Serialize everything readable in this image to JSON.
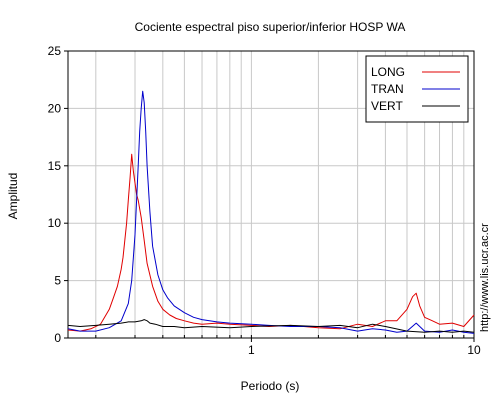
{
  "chart_data": {
    "type": "line",
    "title": "Cociente espectral piso superior/inferior  HOSP WA",
    "xlabel": "Periodo (s)",
    "ylabel": "Amplitud",
    "watermark": "http://www.lis.ucr.ac.cr",
    "x_scale": "log",
    "xlim": [
      0.15,
      10
    ],
    "ylim": [
      0,
      25
    ],
    "x_ticks": [
      {
        "value": 1,
        "label": "1"
      },
      {
        "value": 10,
        "label": "10"
      }
    ],
    "y_ticks": [
      0,
      5,
      10,
      15,
      20,
      25
    ],
    "grid": true,
    "legend_position": "top-right",
    "series": [
      {
        "name": "LONG",
        "color": "#e00000",
        "x": [
          0.15,
          0.17,
          0.19,
          0.21,
          0.23,
          0.24,
          0.25,
          0.26,
          0.265,
          0.27,
          0.275,
          0.28,
          0.285,
          0.29,
          0.295,
          0.3,
          0.305,
          0.31,
          0.32,
          0.33,
          0.34,
          0.36,
          0.38,
          0.4,
          0.43,
          0.46,
          0.5,
          0.55,
          0.6,
          0.7,
          0.8,
          1.0,
          1.2,
          1.5,
          2.0,
          2.5,
          3.0,
          3.5,
          4.0,
          4.5,
          5.0,
          5.3,
          5.5,
          5.7,
          6.0,
          6.5,
          7.0,
          8.0,
          9.0,
          10.0
        ],
        "y": [
          0.7,
          0.6,
          0.8,
          1.2,
          2.5,
          3.5,
          4.5,
          6.0,
          7.0,
          8.5,
          10.0,
          12.0,
          14.0,
          16.0,
          14.5,
          13.5,
          12.5,
          12.0,
          10.5,
          8.5,
          6.5,
          4.5,
          3.2,
          2.5,
          2.0,
          1.7,
          1.5,
          1.3,
          1.2,
          1.3,
          1.2,
          1.1,
          1.0,
          1.1,
          0.9,
          0.8,
          1.2,
          1.0,
          1.5,
          1.5,
          2.5,
          3.6,
          3.9,
          2.8,
          1.8,
          1.5,
          1.2,
          1.3,
          1.0,
          2.0
        ]
      },
      {
        "name": "TRAN",
        "color": "#0000cc",
        "x": [
          0.15,
          0.17,
          0.2,
          0.23,
          0.26,
          0.28,
          0.29,
          0.3,
          0.305,
          0.31,
          0.315,
          0.32,
          0.325,
          0.33,
          0.335,
          0.34,
          0.35,
          0.36,
          0.38,
          0.4,
          0.42,
          0.45,
          0.5,
          0.55,
          0.6,
          0.7,
          0.8,
          1.0,
          1.2,
          1.5,
          2.0,
          2.5,
          3.0,
          3.5,
          4.0,
          4.5,
          5.0,
          5.5,
          6.0,
          7.0,
          8.0,
          9.0,
          10.0
        ],
        "y": [
          0.8,
          0.6,
          0.6,
          0.9,
          1.5,
          3.0,
          5.0,
          9.0,
          12.0,
          15.0,
          18.0,
          20.0,
          21.5,
          20.5,
          18.0,
          15.0,
          11.0,
          8.0,
          5.5,
          4.2,
          3.5,
          2.8,
          2.2,
          1.8,
          1.6,
          1.4,
          1.3,
          1.2,
          1.1,
          1.0,
          1.0,
          0.9,
          0.6,
          0.8,
          0.7,
          0.5,
          0.6,
          1.3,
          0.6,
          0.5,
          0.7,
          0.5,
          0.4
        ]
      },
      {
        "name": "VERT",
        "color": "#000000",
        "x": [
          0.15,
          0.17,
          0.2,
          0.23,
          0.26,
          0.28,
          0.3,
          0.32,
          0.33,
          0.34,
          0.35,
          0.37,
          0.4,
          0.45,
          0.5,
          0.6,
          0.8,
          1.0,
          1.5,
          2.0,
          2.5,
          3.0,
          3.5,
          4.0,
          5.0,
          6.0,
          7.0,
          8.0,
          9.0,
          10.0
        ],
        "y": [
          1.1,
          1.0,
          1.1,
          1.2,
          1.3,
          1.4,
          1.4,
          1.5,
          1.6,
          1.5,
          1.3,
          1.2,
          1.0,
          1.0,
          0.9,
          1.0,
          0.9,
          1.0,
          1.1,
          1.0,
          1.1,
          0.9,
          1.2,
          1.0,
          0.6,
          0.5,
          0.6,
          0.5,
          0.6,
          0.5
        ]
      }
    ]
  }
}
